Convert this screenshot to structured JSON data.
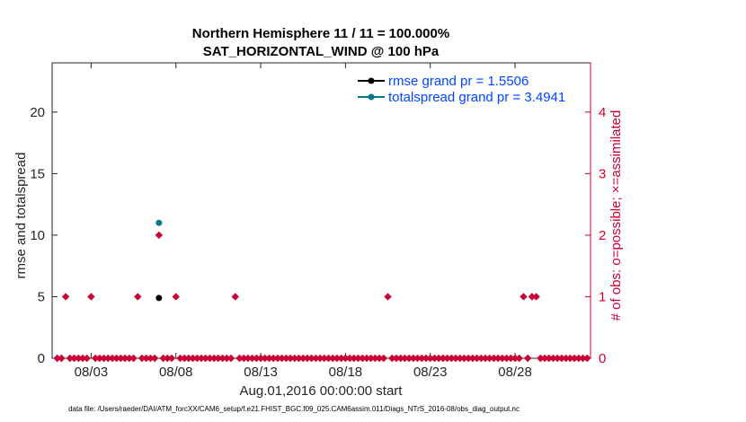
{
  "title": {
    "line1": "Northern Hemisphere 11 / 11 = 100.000%",
    "line2": "SAT_HORIZONTAL_WIND @ 100 hPa"
  },
  "footer_text": "data file: /Users/raeder/DAI/ATM_forcXX/CAM6_setup/f.e21.FHIST_BGC.f09_025.CAM6assim.011/Diags_NTrS_2016-08/obs_diag_output.nc",
  "colors": {
    "rmse": "#000000",
    "totalspread": "#007a87",
    "obs_count": "#cc0033",
    "legend_text": "#0047ff"
  },
  "chart_data": {
    "type": "scatter",
    "xlabel": "Aug.01,2016 00:00:00 start",
    "ylabel": "rmse and totalspread",
    "ylabel_right": "# of obs: o=possible; ×=assimilated",
    "xlim": [
      0.2,
      31.95
    ],
    "ylim": [
      0,
      24
    ],
    "ylim_right": [
      0,
      4.8
    ],
    "x_ticks": [
      2.5,
      7.5,
      12.5,
      17.5,
      22.5,
      27.5
    ],
    "x_tick_labels": [
      "08/03",
      "08/08",
      "08/13",
      "08/18",
      "08/23",
      "08/28"
    ],
    "y_ticks": [
      0,
      5,
      10,
      15,
      20
    ],
    "y_tick_labels": [
      "0",
      "5",
      "10",
      "15",
      "20"
    ],
    "y_ticks_right": [
      0,
      1,
      2,
      3,
      4
    ],
    "y_tick_labels_right": [
      "0",
      "1",
      "2",
      "3",
      "4"
    ],
    "legend_position": "top-right",
    "grid": false,
    "series": [
      {
        "name": "rmse grand pr = 1.5506",
        "axis": "left",
        "marker": "dot",
        "points": [
          [
            6.5,
            4.9
          ]
        ]
      },
      {
        "name": "totalspread grand pr = 3.4941",
        "axis": "left",
        "marker": "dot",
        "points": [
          [
            6.5,
            11.0
          ]
        ]
      },
      {
        "name": "obs_possible",
        "axis": "right",
        "marker": "diamond",
        "points": [
          [
            0.5,
            0
          ],
          [
            0.75,
            0
          ],
          [
            1.0,
            1
          ],
          [
            1.25,
            0
          ],
          [
            1.5,
            0
          ],
          [
            1.75,
            0
          ],
          [
            2.0,
            0
          ],
          [
            2.25,
            0
          ],
          [
            2.5,
            1
          ],
          [
            2.75,
            0
          ],
          [
            3.0,
            0
          ],
          [
            3.25,
            0
          ],
          [
            3.5,
            0
          ],
          [
            3.75,
            0
          ],
          [
            4.0,
            0
          ],
          [
            4.25,
            0
          ],
          [
            4.5,
            0
          ],
          [
            4.75,
            0
          ],
          [
            5.0,
            0
          ],
          [
            5.25,
            1
          ],
          [
            5.5,
            0
          ],
          [
            5.75,
            0
          ],
          [
            6.0,
            0
          ],
          [
            6.25,
            0
          ],
          [
            6.5,
            2
          ],
          [
            6.75,
            0
          ],
          [
            7.0,
            0
          ],
          [
            7.25,
            0
          ],
          [
            7.5,
            1
          ],
          [
            7.75,
            0
          ],
          [
            8.0,
            0
          ],
          [
            8.25,
            0
          ],
          [
            8.5,
            0
          ],
          [
            8.75,
            0
          ],
          [
            9.0,
            0
          ],
          [
            9.25,
            0
          ],
          [
            9.5,
            0
          ],
          [
            9.75,
            0
          ],
          [
            10.0,
            0
          ],
          [
            10.25,
            0
          ],
          [
            10.5,
            0
          ],
          [
            10.75,
            0
          ],
          [
            11.0,
            1
          ],
          [
            11.25,
            0
          ],
          [
            11.5,
            0
          ],
          [
            11.75,
            0
          ],
          [
            12.0,
            0
          ],
          [
            12.25,
            0
          ],
          [
            12.5,
            0
          ],
          [
            12.75,
            0
          ],
          [
            13.0,
            0
          ],
          [
            13.25,
            0
          ],
          [
            13.5,
            0
          ],
          [
            13.75,
            0
          ],
          [
            14.0,
            0
          ],
          [
            14.25,
            0
          ],
          [
            14.5,
            0
          ],
          [
            14.75,
            0
          ],
          [
            15.0,
            0
          ],
          [
            15.25,
            0
          ],
          [
            15.5,
            0
          ],
          [
            15.75,
            0
          ],
          [
            16.0,
            0
          ],
          [
            16.25,
            0
          ],
          [
            16.5,
            0
          ],
          [
            16.75,
            0
          ],
          [
            17.0,
            0
          ],
          [
            17.25,
            0
          ],
          [
            17.5,
            0
          ],
          [
            17.75,
            0
          ],
          [
            18.0,
            0
          ],
          [
            18.25,
            0
          ],
          [
            18.5,
            0
          ],
          [
            18.75,
            0
          ],
          [
            19.0,
            0
          ],
          [
            19.25,
            0
          ],
          [
            19.5,
            0
          ],
          [
            19.75,
            0
          ],
          [
            20.0,
            1
          ],
          [
            20.25,
            0
          ],
          [
            20.5,
            0
          ],
          [
            20.75,
            0
          ],
          [
            21.0,
            0
          ],
          [
            21.25,
            0
          ],
          [
            21.5,
            0
          ],
          [
            21.75,
            0
          ],
          [
            22.0,
            0
          ],
          [
            22.25,
            0
          ],
          [
            22.5,
            0
          ],
          [
            22.75,
            0
          ],
          [
            23.0,
            0
          ],
          [
            23.25,
            0
          ],
          [
            23.5,
            0
          ],
          [
            23.75,
            0
          ],
          [
            24.0,
            0
          ],
          [
            24.25,
            0
          ],
          [
            24.5,
            0
          ],
          [
            24.75,
            0
          ],
          [
            25.0,
            0
          ],
          [
            25.25,
            0
          ],
          [
            25.5,
            0
          ],
          [
            25.75,
            0
          ],
          [
            26.0,
            0
          ],
          [
            26.25,
            0
          ],
          [
            26.5,
            0
          ],
          [
            26.75,
            0
          ],
          [
            27.0,
            0
          ],
          [
            27.25,
            0
          ],
          [
            27.5,
            0
          ],
          [
            27.75,
            0
          ],
          [
            28.0,
            1
          ],
          [
            28.25,
            0
          ],
          [
            28.5,
            1
          ],
          [
            28.75,
            1
          ],
          [
            29.0,
            0
          ],
          [
            29.25,
            0
          ],
          [
            29.5,
            0
          ],
          [
            29.75,
            0
          ],
          [
            30.0,
            0
          ],
          [
            30.25,
            0
          ],
          [
            30.5,
            0
          ],
          [
            30.75,
            0
          ],
          [
            31.0,
            0
          ],
          [
            31.25,
            0
          ],
          [
            31.5,
            0
          ],
          [
            31.75,
            0
          ]
        ]
      }
    ]
  }
}
